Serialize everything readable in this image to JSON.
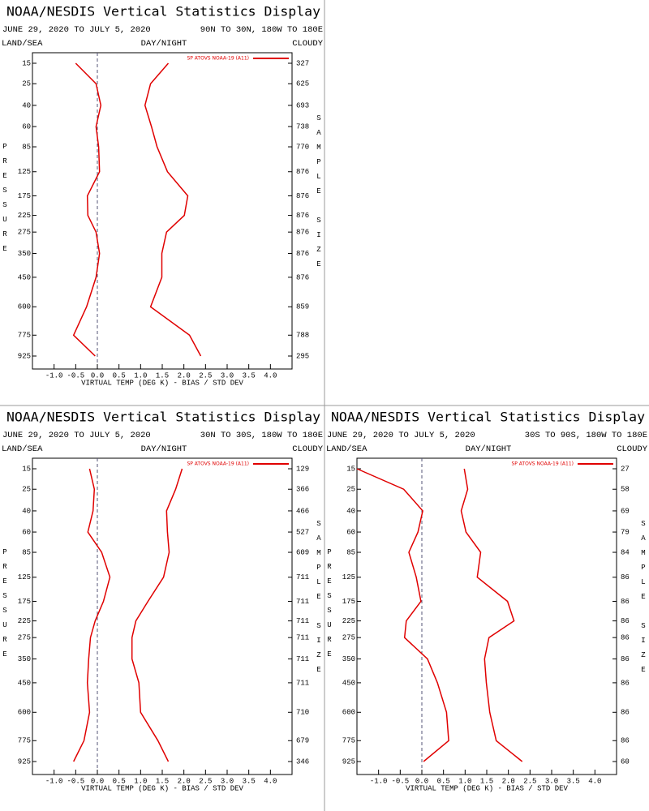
{
  "chart_data": [
    {
      "type": "line",
      "title": "NOAA/NESDIS Vertical Statistics Display",
      "date_range": "JUNE 29, 2020 TO JULY 5, 2020",
      "region": "90N TO 30N, 180W TO 180E",
      "land_sea_label": "LAND/SEA",
      "day_night_label": "DAY/NIGHT",
      "cloud_label": "CLOUDY",
      "ylabel": "PRESSURE",
      "y2label": "SAMPLE SIZE",
      "xlabel": "VIRTUAL TEMP (DEG K) - BIAS / STD DEV",
      "categories": [
        15,
        25,
        40,
        60,
        85,
        125,
        175,
        225,
        275,
        350,
        450,
        600,
        775,
        925
      ],
      "sample_sizes": [
        327,
        625,
        693,
        738,
        770,
        876,
        876,
        876,
        876,
        876,
        876,
        859,
        788,
        295
      ],
      "series": [
        {
          "name": "SP ATOVS NOAA-19 (A11)",
          "color": "#e00000",
          "bias": [
            -0.5,
            -0.03,
            0.08,
            -0.03,
            0.03,
            0.05,
            -0.23,
            -0.22,
            -0.03,
            0.05,
            -0.03,
            -0.25,
            -0.55,
            -0.05
          ],
          "std_dev": [
            1.64,
            1.23,
            1.1,
            1.25,
            1.38,
            1.62,
            2.09,
            2.01,
            1.6,
            1.49,
            1.49,
            1.23,
            2.13,
            2.39
          ]
        }
      ],
      "xlim": [
        -1.5,
        4.5
      ],
      "xticks": [
        {
          "value": -1,
          "label": "-1.0"
        },
        -0.5,
        {
          "value": 0,
          "label": "0.0"
        },
        0.5,
        {
          "value": 1,
          "label": "1.0"
        },
        1.5,
        {
          "value": 2,
          "label": "2.0"
        },
        2.5,
        {
          "value": 3,
          "label": "3.0"
        },
        3.5,
        {
          "value": 4,
          "label": "4.0"
        }
      ]
    },
    {
      "type": "line",
      "title": "NOAA/NESDIS Vertical Statistics Display",
      "date_range": "JUNE 29, 2020 TO JULY 5, 2020",
      "region": "30N TO 30S, 180W TO 180E",
      "land_sea_label": "LAND/SEA",
      "day_night_label": "DAY/NIGHT",
      "cloud_label": "CLOUDY",
      "ylabel": "PRESSURE",
      "y2label": "SAMPLE SIZE",
      "xlabel": "VIRTUAL TEMP (DEG K) - BIAS / STD DEV",
      "categories": [
        15,
        25,
        40,
        60,
        85,
        125,
        175,
        225,
        275,
        350,
        450,
        600,
        775,
        925
      ],
      "sample_sizes": [
        129,
        366,
        466,
        527,
        609,
        711,
        711,
        711,
        711,
        711,
        711,
        710,
        679,
        346
      ],
      "series": [
        {
          "name": "SP ATOVS NOAA-19 (A11)",
          "color": "#e00000",
          "bias": [
            -0.18,
            -0.07,
            -0.1,
            -0.22,
            0.1,
            0.29,
            0.14,
            -0.05,
            -0.16,
            -0.2,
            -0.23,
            -0.18,
            -0.31,
            -0.55
          ],
          "std_dev": [
            1.96,
            1.81,
            1.6,
            1.62,
            1.66,
            1.53,
            1.17,
            0.89,
            0.8,
            0.8,
            0.96,
            1.0,
            1.4,
            1.64
          ]
        }
      ],
      "xlim": [
        -1.5,
        4.5
      ],
      "xticks": [
        {
          "value": -1,
          "label": "-1.0"
        },
        -0.5,
        {
          "value": 0,
          "label": "0.0"
        },
        0.5,
        {
          "value": 1,
          "label": "1.0"
        },
        1.5,
        {
          "value": 2,
          "label": "2.0"
        },
        2.5,
        {
          "value": 3,
          "label": "3.0"
        },
        3.5,
        {
          "value": 4,
          "label": "4.0"
        }
      ]
    },
    {
      "type": "line",
      "title": "NOAA/NESDIS Vertical Statistics Display",
      "date_range": "JUNE 29, 2020 TO JULY 5, 2020",
      "region": "30S TO 90S, 180W TO 180E",
      "land_sea_label": "LAND/SEA",
      "day_night_label": "DAY/NIGHT",
      "cloud_label": "CLOUDY",
      "ylabel": "PRESSURE",
      "y2label": "SAMPLE SIZE",
      "xlabel": "VIRTUAL TEMP (DEG K) - BIAS / STD DEV",
      "categories": [
        15,
        25,
        40,
        60,
        85,
        125,
        175,
        225,
        275,
        350,
        450,
        600,
        775,
        925
      ],
      "sample_sizes": [
        27,
        58,
        69,
        79,
        84,
        86,
        86,
        86,
        86,
        86,
        86,
        86,
        86,
        60
      ],
      "series": [
        {
          "name": "SP ATOVS NOAA-19 (A11)",
          "color": "#e00000",
          "bias": [
            -1.5,
            -0.42,
            0.02,
            -0.09,
            -0.3,
            -0.13,
            -0.02,
            -0.36,
            -0.4,
            0.13,
            0.36,
            0.57,
            0.62,
            0.04
          ],
          "std_dev": [
            0.98,
            1.06,
            0.91,
            1.02,
            1.36,
            1.28,
            1.98,
            2.13,
            1.55,
            1.45,
            1.49,
            1.57,
            1.72,
            2.32
          ]
        }
      ],
      "xlim": [
        -1.5,
        4.5
      ],
      "xticks": [
        {
          "value": -1,
          "label": "-1.0"
        },
        -0.5,
        {
          "value": 0,
          "label": "0.0"
        },
        0.5,
        {
          "value": 1,
          "label": "1.0"
        },
        1.5,
        {
          "value": 2,
          "label": "2.0"
        },
        2.5,
        {
          "value": 3,
          "label": "3.0"
        },
        3.5,
        {
          "value": 4,
          "label": "4.0"
        }
      ]
    }
  ]
}
